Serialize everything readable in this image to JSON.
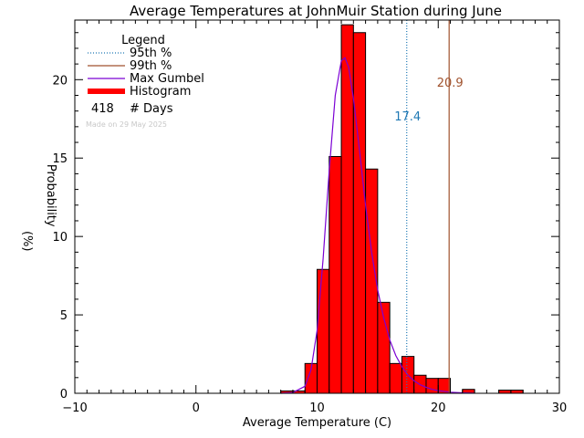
{
  "chart_data": {
    "type": "bar",
    "title": "Average Temperatures at JohnMuir Station during June",
    "xlabel": "Average Temperature (C)",
    "ylabel_line1": "Probability",
    "ylabel_line2": "(%)",
    "xlim": [
      -10,
      30
    ],
    "ylim": [
      0,
      23.8
    ],
    "x_ticks": [
      -10,
      0,
      10,
      20,
      30
    ],
    "x_tick_labels": [
      "−10",
      "0",
      "10",
      "20",
      "30"
    ],
    "y_ticks": [
      0,
      5,
      10,
      15,
      20
    ],
    "y_tick_labels": [
      "0",
      "5",
      "10",
      "15",
      "20"
    ],
    "x_minor_step": 1,
    "y_minor_step": 1,
    "bin_width": 1,
    "histogram": {
      "bin_starts": [
        7,
        8,
        9,
        10,
        11,
        12,
        13,
        14,
        15,
        16,
        17,
        18,
        19,
        20,
        21,
        22,
        23,
        24,
        25,
        26
      ],
      "values": [
        0.15,
        0.15,
        1.9,
        7.9,
        15.1,
        23.5,
        23.0,
        14.3,
        5.8,
        1.9,
        2.35,
        1.15,
        0.95,
        0.95,
        0.0,
        0.25,
        0.0,
        0.0,
        0.2,
        0.2
      ],
      "color": "#ff0000"
    },
    "gumbel_curve": {
      "x": [
        7.0,
        8.0,
        9.0,
        9.5,
        10.0,
        10.5,
        11.0,
        11.5,
        12.0,
        12.3,
        12.6,
        13.0,
        13.5,
        14.0,
        14.5,
        15.0,
        15.5,
        16.0,
        16.5,
        17.0,
        17.5,
        18.0,
        18.5,
        19.0,
        19.5,
        20.0,
        21.0,
        22.0,
        23.0
      ],
      "y": [
        0.0,
        0.05,
        0.45,
        1.5,
        4.0,
        8.6,
        14.2,
        19.0,
        21.2,
        21.4,
        20.8,
        18.8,
        15.5,
        12.0,
        9.0,
        6.6,
        4.8,
        3.4,
        2.4,
        1.7,
        1.15,
        0.8,
        0.55,
        0.38,
        0.25,
        0.17,
        0.07,
        0.03,
        0.01
      ],
      "color": "#7b00d4"
    },
    "percentile_95": {
      "value": 17.4,
      "label": "17.4",
      "color": "#1f78b4"
    },
    "percentile_99": {
      "value": 20.9,
      "label": "20.9",
      "color": "#a0522d"
    },
    "legend": {
      "placement": "top-left",
      "title": "Legend",
      "entries": [
        {
          "label": "95th %",
          "style": "dotted",
          "color": "#1f78b4"
        },
        {
          "label": "99th %",
          "style": "line",
          "color": "#a0522d"
        },
        {
          "label": "Max Gumbel",
          "style": "line",
          "color": "#7b00d4"
        },
        {
          "label": "Histogram",
          "style": "thick",
          "color": "#ff0000"
        }
      ],
      "days_count": "418",
      "days_label": "# Days",
      "made_on": "Made on 29 May 2025"
    },
    "grid": false
  }
}
